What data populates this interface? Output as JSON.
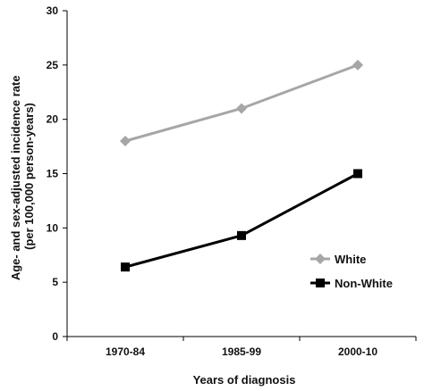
{
  "chart_data": {
    "type": "line",
    "title": "",
    "xlabel": "Years of diagnosis",
    "ylabel_line1": "Age- and sex-adjusted incidence rate",
    "ylabel_line2": "(per 100,000 person-years)",
    "categories": [
      "1970-84",
      "1985-99",
      "2000-10"
    ],
    "ylim": [
      0,
      30
    ],
    "yticks": [
      0,
      5,
      10,
      15,
      20,
      25,
      30
    ],
    "grid": false,
    "legend_position": "lower-right",
    "series": [
      {
        "name": "White",
        "values": [
          18,
          21,
          25
        ],
        "color": "#a6a6a6",
        "marker": "diamond"
      },
      {
        "name": "Non-White",
        "values": [
          6.4,
          9.3,
          15
        ],
        "color": "#000000",
        "marker": "square"
      }
    ]
  }
}
